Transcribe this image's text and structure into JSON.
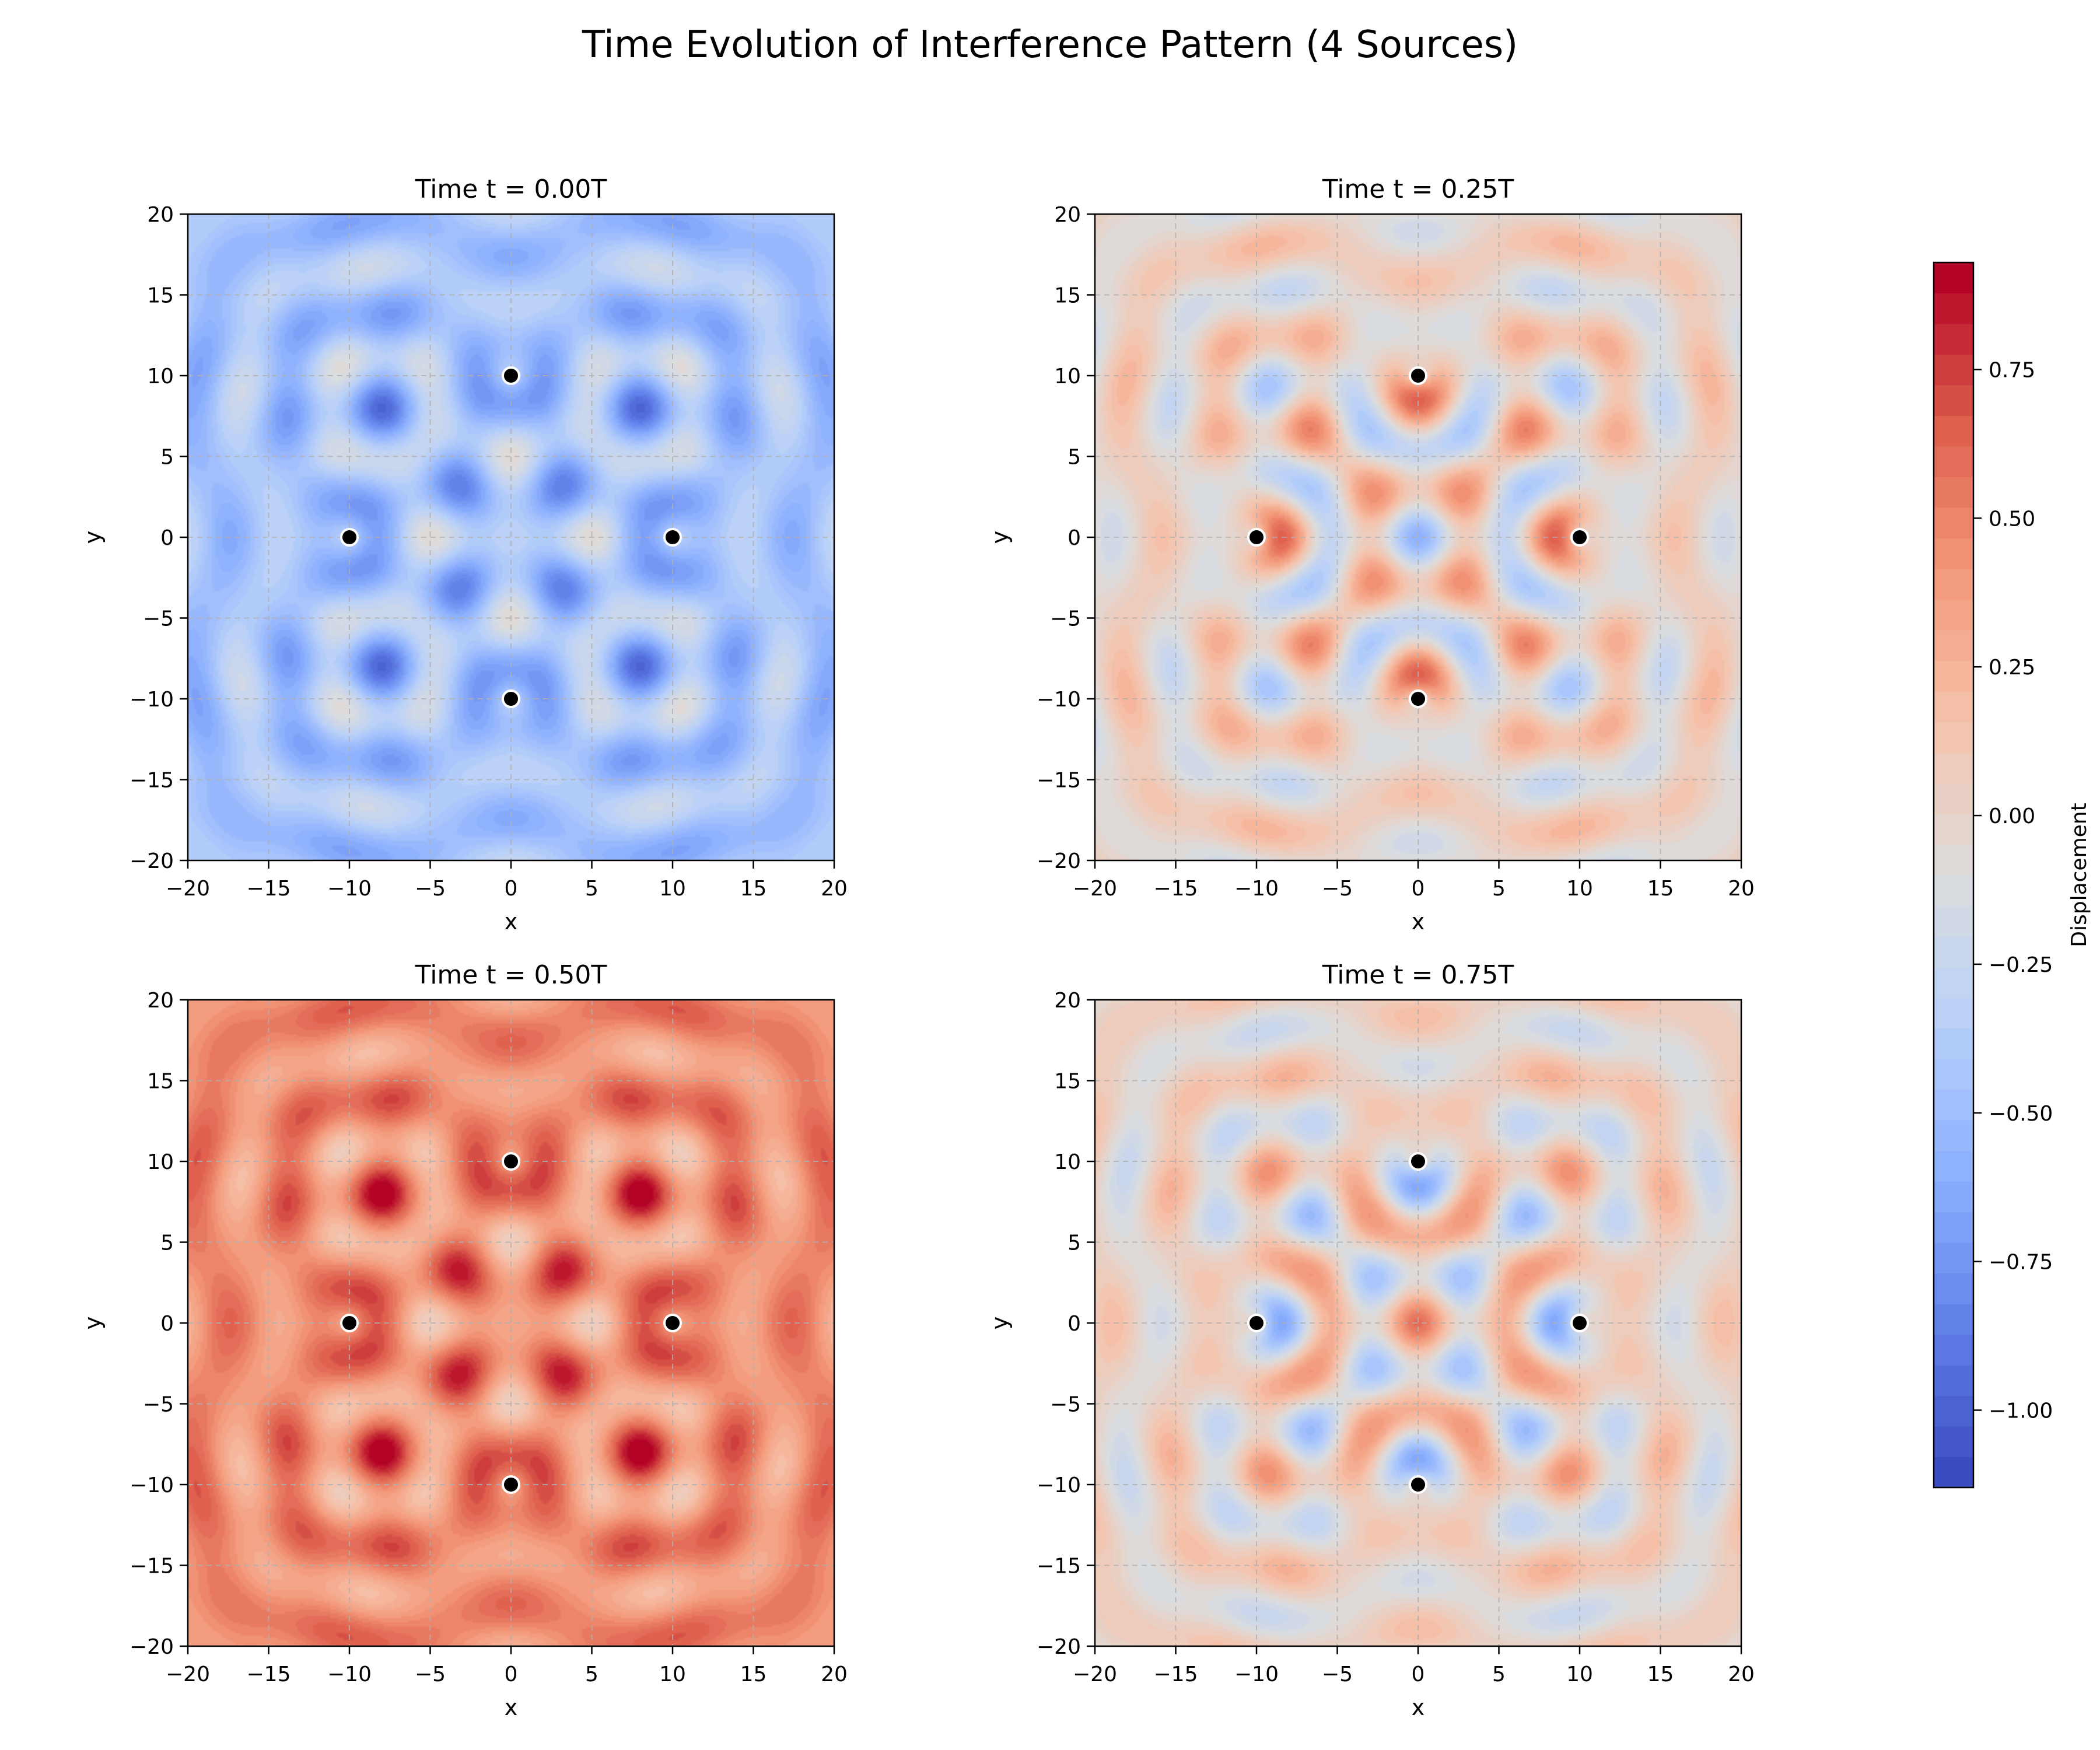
{
  "figure": {
    "suptitle": "Time Evolution of Interference Pattern (4 Sources)"
  },
  "chart_data": [
    {
      "type": "heatmap",
      "title": "Time t = 0.00T",
      "phase": 0.0,
      "xlabel": "x",
      "ylabel": "y",
      "xlim": [
        -20,
        20
      ],
      "ylim": [
        -20,
        20
      ],
      "xticks": [
        -20,
        -15,
        -10,
        -5,
        0,
        5,
        10,
        15,
        20
      ],
      "yticks": [
        -20,
        -15,
        -10,
        -5,
        0,
        5,
        10,
        15,
        20
      ],
      "xtick_labels": [
        "−20",
        "−15",
        "−10",
        "−5",
        "0",
        "5",
        "10",
        "15",
        "20"
      ],
      "ytick_labels": [
        "−20",
        "−15",
        "−10",
        "−5",
        "0",
        "5",
        "10",
        "15",
        "20"
      ],
      "grid": true,
      "colormap": "coolwarm",
      "sources": [
        {
          "x": -10,
          "y": 0
        },
        {
          "x": 10,
          "y": 0
        },
        {
          "x": 0,
          "y": -10
        },
        {
          "x": 0,
          "y": 10
        }
      ]
    },
    {
      "type": "heatmap",
      "title": "Time t = 0.25T",
      "phase": 0.25,
      "xlabel": "x",
      "ylabel": "y",
      "xlim": [
        -20,
        20
      ],
      "ylim": [
        -20,
        20
      ],
      "xticks": [
        -20,
        -15,
        -10,
        -5,
        0,
        5,
        10,
        15,
        20
      ],
      "yticks": [
        -20,
        -15,
        -10,
        -5,
        0,
        5,
        10,
        15,
        20
      ],
      "xtick_labels": [
        "−20",
        "−15",
        "−10",
        "−5",
        "0",
        "5",
        "10",
        "15",
        "20"
      ],
      "ytick_labels": [
        "−20",
        "−15",
        "−10",
        "−5",
        "0",
        "5",
        "10",
        "15",
        "20"
      ],
      "grid": true,
      "colormap": "coolwarm",
      "sources": [
        {
          "x": -10,
          "y": 0
        },
        {
          "x": 10,
          "y": 0
        },
        {
          "x": 0,
          "y": -10
        },
        {
          "x": 0,
          "y": 10
        }
      ]
    },
    {
      "type": "heatmap",
      "title": "Time t = 0.50T",
      "phase": 0.5,
      "xlabel": "x",
      "ylabel": "y",
      "xlim": [
        -20,
        20
      ],
      "ylim": [
        -20,
        20
      ],
      "xticks": [
        -20,
        -15,
        -10,
        -5,
        0,
        5,
        10,
        15,
        20
      ],
      "yticks": [
        -20,
        -15,
        -10,
        -5,
        0,
        5,
        10,
        15,
        20
      ],
      "xtick_labels": [
        "−20",
        "−15",
        "−10",
        "−5",
        "0",
        "5",
        "10",
        "15",
        "20"
      ],
      "ytick_labels": [
        "−20",
        "−15",
        "−10",
        "−5",
        "0",
        "5",
        "10",
        "15",
        "20"
      ],
      "grid": true,
      "colormap": "coolwarm",
      "sources": [
        {
          "x": -10,
          "y": 0
        },
        {
          "x": 10,
          "y": 0
        },
        {
          "x": 0,
          "y": -10
        },
        {
          "x": 0,
          "y": 10
        }
      ]
    },
    {
      "type": "heatmap",
      "title": "Time t = 0.75T",
      "phase": 0.75,
      "xlabel": "x",
      "ylabel": "y",
      "xlim": [
        -20,
        20
      ],
      "ylim": [
        -20,
        20
      ],
      "xticks": [
        -20,
        -15,
        -10,
        -5,
        0,
        5,
        10,
        15,
        20
      ],
      "yticks": [
        -20,
        -15,
        -10,
        -5,
        0,
        5,
        10,
        15,
        20
      ],
      "xtick_labels": [
        "−20",
        "−15",
        "−10",
        "−5",
        "0",
        "5",
        "10",
        "15",
        "20"
      ],
      "ytick_labels": [
        "−20",
        "−15",
        "−10",
        "−5",
        "0",
        "5",
        "10",
        "15",
        "20"
      ],
      "grid": true,
      "colormap": "coolwarm",
      "sources": [
        {
          "x": -10,
          "y": 0
        },
        {
          "x": 10,
          "y": 0
        },
        {
          "x": 0,
          "y": -10
        },
        {
          "x": 0,
          "y": 10
        }
      ]
    }
  ],
  "colorbar": {
    "label": "Displacement",
    "range": [
      -1.13,
      0.93
    ],
    "ticks": [
      -1.0,
      -0.75,
      -0.5,
      -0.25,
      0.0,
      0.25,
      0.5,
      0.75
    ],
    "tick_labels": [
      "−1.00",
      "−0.75",
      "−0.50",
      "−0.25",
      "0.00",
      "0.25",
      "0.50",
      "0.75"
    ]
  }
}
